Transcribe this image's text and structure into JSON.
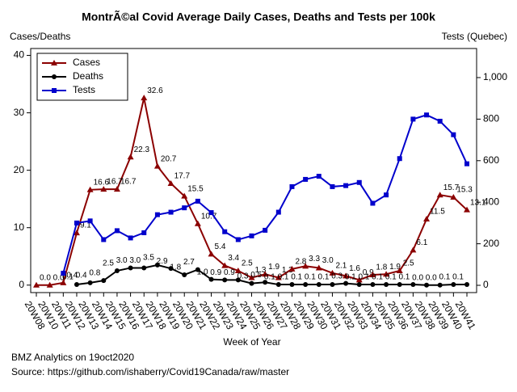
{
  "chart_data": {
    "type": "line",
    "title": "MontrÃ©al Covid Average Daily Cases, Deaths and Tests per 100k",
    "ylabel": "Cases/Deaths",
    "y2label": "Tests (Quebec)",
    "xlabel": "Week of Year",
    "footnotes": [
      "BMZ Analytics on 19oct2020",
      "Source: https://github.com/ishaberry/Covid19Canada/raw/master"
    ],
    "categories": [
      "20W08",
      "20W10",
      "20W11",
      "20W12",
      "20W13",
      "20W14",
      "20W15",
      "20W16",
      "20W17",
      "20W18",
      "20W19",
      "20W20",
      "20W21",
      "20W22",
      "20W23",
      "20W24",
      "20W25",
      "20W26",
      "20W27",
      "20W28",
      "20W29",
      "20W30",
      "20W31",
      "20W32",
      "20W33",
      "20W34",
      "20W35",
      "20W36",
      "20W37",
      "20W38",
      "20W39",
      "20W40",
      "20W41"
    ],
    "series": [
      {
        "name": "Cases",
        "color": "#8b0000",
        "marker": "triangle",
        "values": [
          0,
          0,
          0.4,
          9.1,
          16.6,
          16.7,
          16.7,
          22.3,
          32.6,
          20.7,
          17.7,
          15.5,
          10.7,
          5.4,
          3.4,
          2.5,
          1.3,
          1.9,
          1.3,
          2.8,
          3.3,
          3,
          2.1,
          1.6,
          0.9,
          1.8,
          1.9,
          2.5,
          6.1,
          11.5,
          15.7,
          15.3,
          13.1
        ],
        "value_labels": [
          "0.0",
          "0.0",
          "0.4",
          "9.1",
          "16.6",
          "16.7",
          "16.7",
          "22.3",
          "32.6",
          "20.7",
          "17.7",
          "15.5",
          "10.7",
          "5.4",
          "3.4",
          "2.5",
          "1.3",
          "1.9",
          "1.3",
          "2.8",
          "3.3",
          "3.0",
          "2.1",
          "1.6",
          "0.9",
          "1.8",
          "1.9",
          "2.5",
          "6.1",
          "11.5",
          "15.7",
          "15.3",
          "13.1"
        ]
      },
      {
        "name": "Deaths",
        "color": "#000000",
        "marker": "circle",
        "values": [
          null,
          null,
          null,
          0.1,
          0.4,
          0.8,
          2.5,
          3,
          3,
          3.5,
          2.9,
          1.8,
          2.7,
          1,
          0.9,
          0.9,
          0.3,
          0.5,
          0.1,
          0.1,
          0.1,
          0.1,
          0.1,
          0.3,
          0.1,
          0.1,
          0.1,
          0.1,
          0.1,
          0,
          0,
          0.1,
          0.1
        ],
        "value_labels": [
          null,
          null,
          null,
          "0.1",
          "0.4",
          "0.8",
          "2.5",
          "3.0",
          "3.0",
          "3.5",
          "2.9",
          "1.8",
          "2.7",
          "1.0",
          "0.9",
          "0.9",
          "0.3",
          "0.5",
          "0.1",
          "0.1",
          "0.1",
          "0.1",
          "0.1",
          "0.3",
          "0.1",
          "0.1",
          "0.1",
          "0.1",
          "0.1",
          "0.0",
          "0.0",
          "0.1",
          "0.1"
        ]
      },
      {
        "name": "Tests",
        "color": "#0000cc",
        "marker": "square",
        "axis": "y2",
        "values": [
          null,
          null,
          58,
          300,
          310,
          220,
          263,
          228,
          253,
          340,
          352,
          373,
          405,
          350,
          258,
          220,
          238,
          265,
          352,
          475,
          510,
          525,
          475,
          480,
          495,
          395,
          435,
          610,
          800,
          820,
          790,
          725,
          585
        ]
      }
    ],
    "ylim": [
      -1.3,
      41.2
    ],
    "yticks": [
      0,
      10,
      20,
      30,
      40
    ],
    "y2lim": [
      -35,
      1140
    ],
    "y2ticks": [
      0,
      200,
      400,
      600,
      800,
      {
        "value": 1000,
        "label": "1,000"
      }
    ],
    "legend": "upper left"
  }
}
